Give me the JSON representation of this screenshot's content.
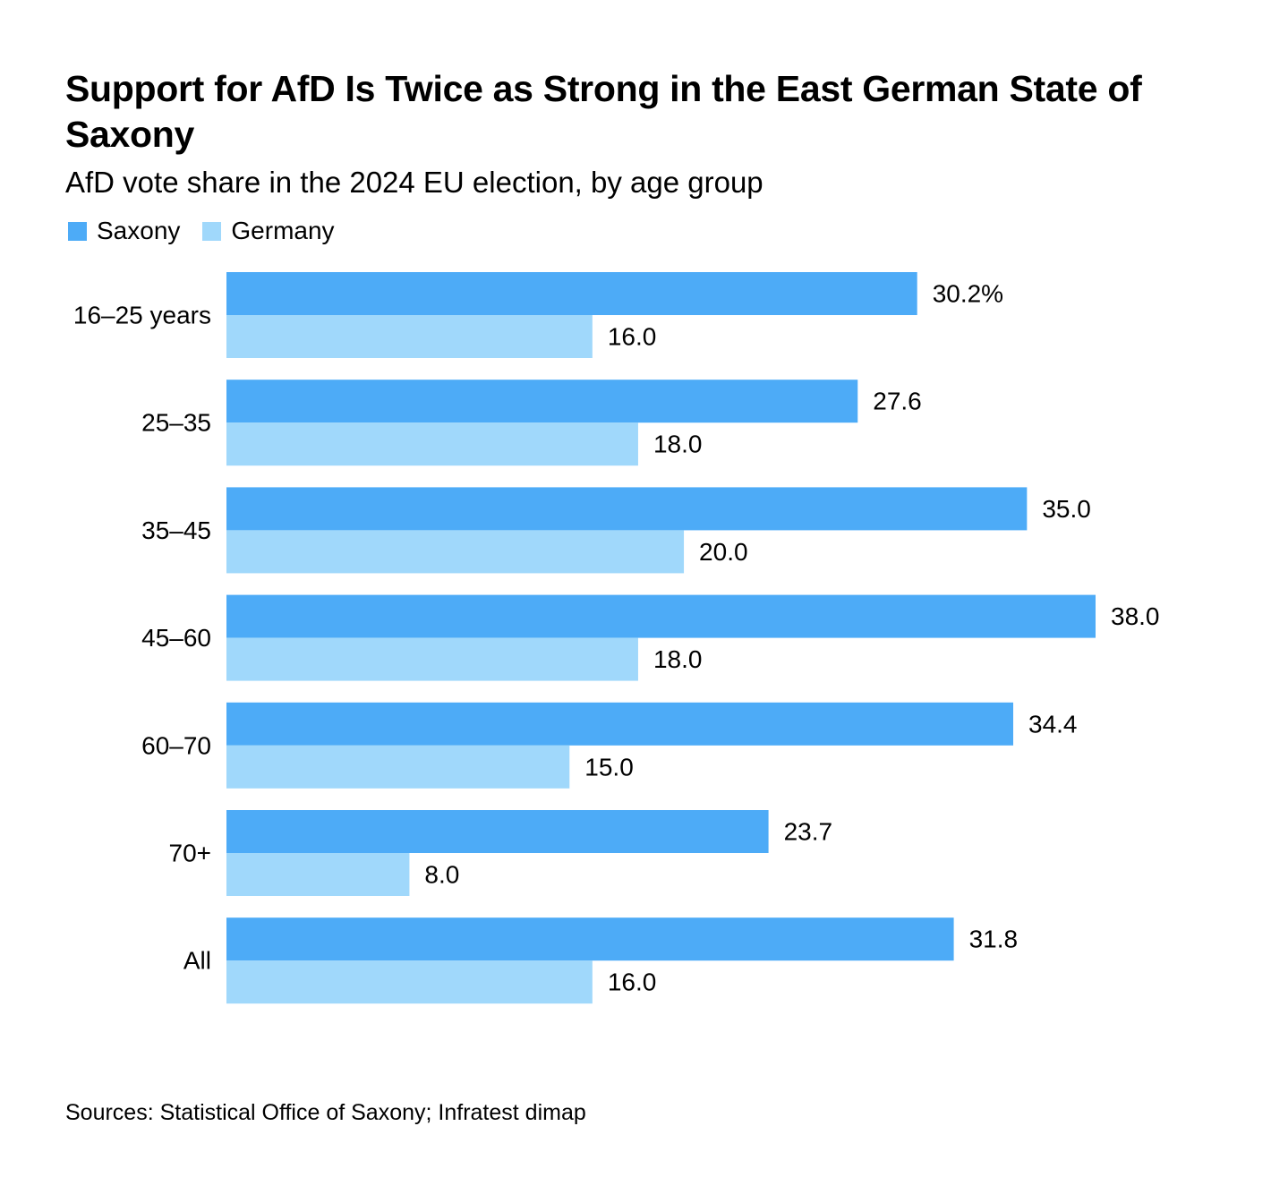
{
  "chart_data": {
    "type": "bar",
    "orientation": "horizontal",
    "title": "Support for AfD Is Twice as Strong in the East German State of Saxony",
    "subtitle": "AfD vote share in the 2024 EU election, by age group",
    "categories": [
      "16–25 years",
      "25–35",
      "35–45",
      "45–60",
      "60–70",
      "70+",
      "All"
    ],
    "series": [
      {
        "name": "Saxony",
        "color": "#4dabf7",
        "values": [
          30.2,
          27.6,
          35.0,
          38.0,
          34.4,
          23.7,
          31.8
        ],
        "labels": [
          "30.2%",
          "27.6",
          "35.0",
          "38.0",
          "34.4",
          "23.7",
          "31.8"
        ]
      },
      {
        "name": "Germany",
        "color": "#a0d8fb",
        "values": [
          16.0,
          18.0,
          20.0,
          18.0,
          15.0,
          8.0,
          16.0
        ],
        "labels": [
          "16.0",
          "18.0",
          "20.0",
          "18.0",
          "15.0",
          "8.0",
          "16.0"
        ]
      }
    ],
    "xlim": [
      0,
      38
    ],
    "xlabel": "",
    "ylabel": "",
    "grid": false,
    "legend": "top-left",
    "source": "Sources: Statistical Office of Saxony; Infratest dimap"
  }
}
